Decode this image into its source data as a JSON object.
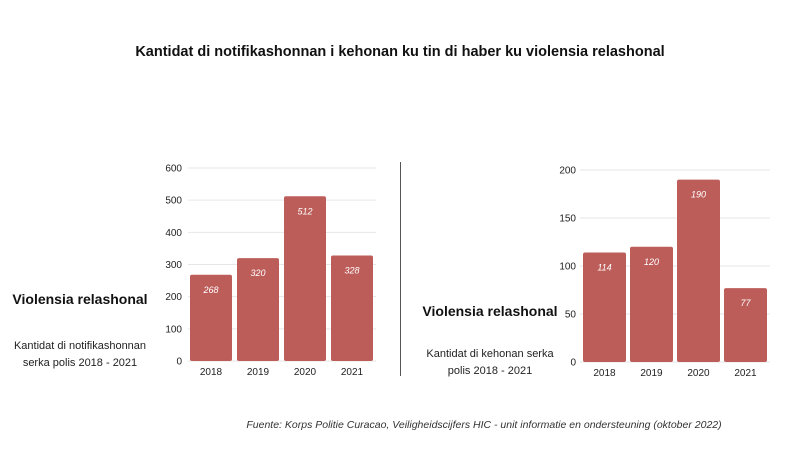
{
  "title": "Kantidat di notifikashonnan i kehonan ku tin di haber ku violensia relashonal",
  "left": {
    "side_title": "Violensia relashonal",
    "side_subtitle": "Kantidat di notifikashonnan serka polis 2018 - 2021"
  },
  "right": {
    "side_title": "Violensia relashonal",
    "side_subtitle": "Kantidat di kehonan serka polis 2018 - 2021"
  },
  "source": "Fuente: Korps Politie Curacao, Veiligheidscijfers HIC - unit informatie en ondersteuning (oktober 2022)",
  "colors": {
    "bar": "#bd5d5a",
    "grid": "#e6e6e6"
  },
  "chart_data": [
    {
      "type": "bar",
      "title": "",
      "categories": [
        "2018",
        "2019",
        "2020",
        "2021"
      ],
      "values": [
        268,
        320,
        512,
        328
      ],
      "ylim": [
        0,
        600
      ],
      "yticks": [
        0,
        100,
        200,
        300,
        400,
        500,
        600
      ],
      "grid": true,
      "data_labels": true
    },
    {
      "type": "bar",
      "title": "",
      "categories": [
        "2018",
        "2019",
        "2020",
        "2021"
      ],
      "values": [
        114,
        120,
        190,
        77
      ],
      "ylim": [
        0,
        200
      ],
      "yticks": [
        0,
        50,
        100,
        150,
        200
      ],
      "grid": true,
      "data_labels": true
    }
  ]
}
